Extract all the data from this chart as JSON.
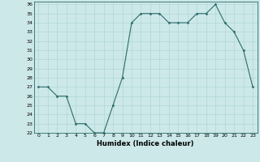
{
  "x": [
    0,
    1,
    2,
    3,
    4,
    5,
    6,
    7,
    8,
    9,
    10,
    11,
    12,
    13,
    14,
    15,
    16,
    17,
    18,
    19,
    20,
    21,
    22,
    23
  ],
  "y": [
    27,
    27,
    26,
    26,
    23,
    23,
    22,
    22,
    25,
    28,
    34,
    35,
    35,
    35,
    34,
    34,
    34,
    35,
    35,
    36,
    34,
    33,
    31,
    27
  ],
  "ylim": [
    22,
    36
  ],
  "xlim": [
    -0.5,
    23.5
  ],
  "yticks": [
    22,
    23,
    24,
    25,
    26,
    27,
    28,
    29,
    30,
    31,
    32,
    33,
    34,
    35,
    36
  ],
  "xticks": [
    0,
    1,
    2,
    3,
    4,
    5,
    6,
    7,
    8,
    9,
    10,
    11,
    12,
    13,
    14,
    15,
    16,
    17,
    18,
    19,
    20,
    21,
    22,
    23
  ],
  "xlabel": "Humidex (Indice chaleur)",
  "line_color": "#2e6b6b",
  "marker": "D",
  "markersize": 1.5,
  "bg_color": "#cce8e8",
  "grid_color": "#aad4d4",
  "tick_fontsize": 4.5,
  "xlabel_fontsize": 6.0,
  "linewidth": 0.8
}
